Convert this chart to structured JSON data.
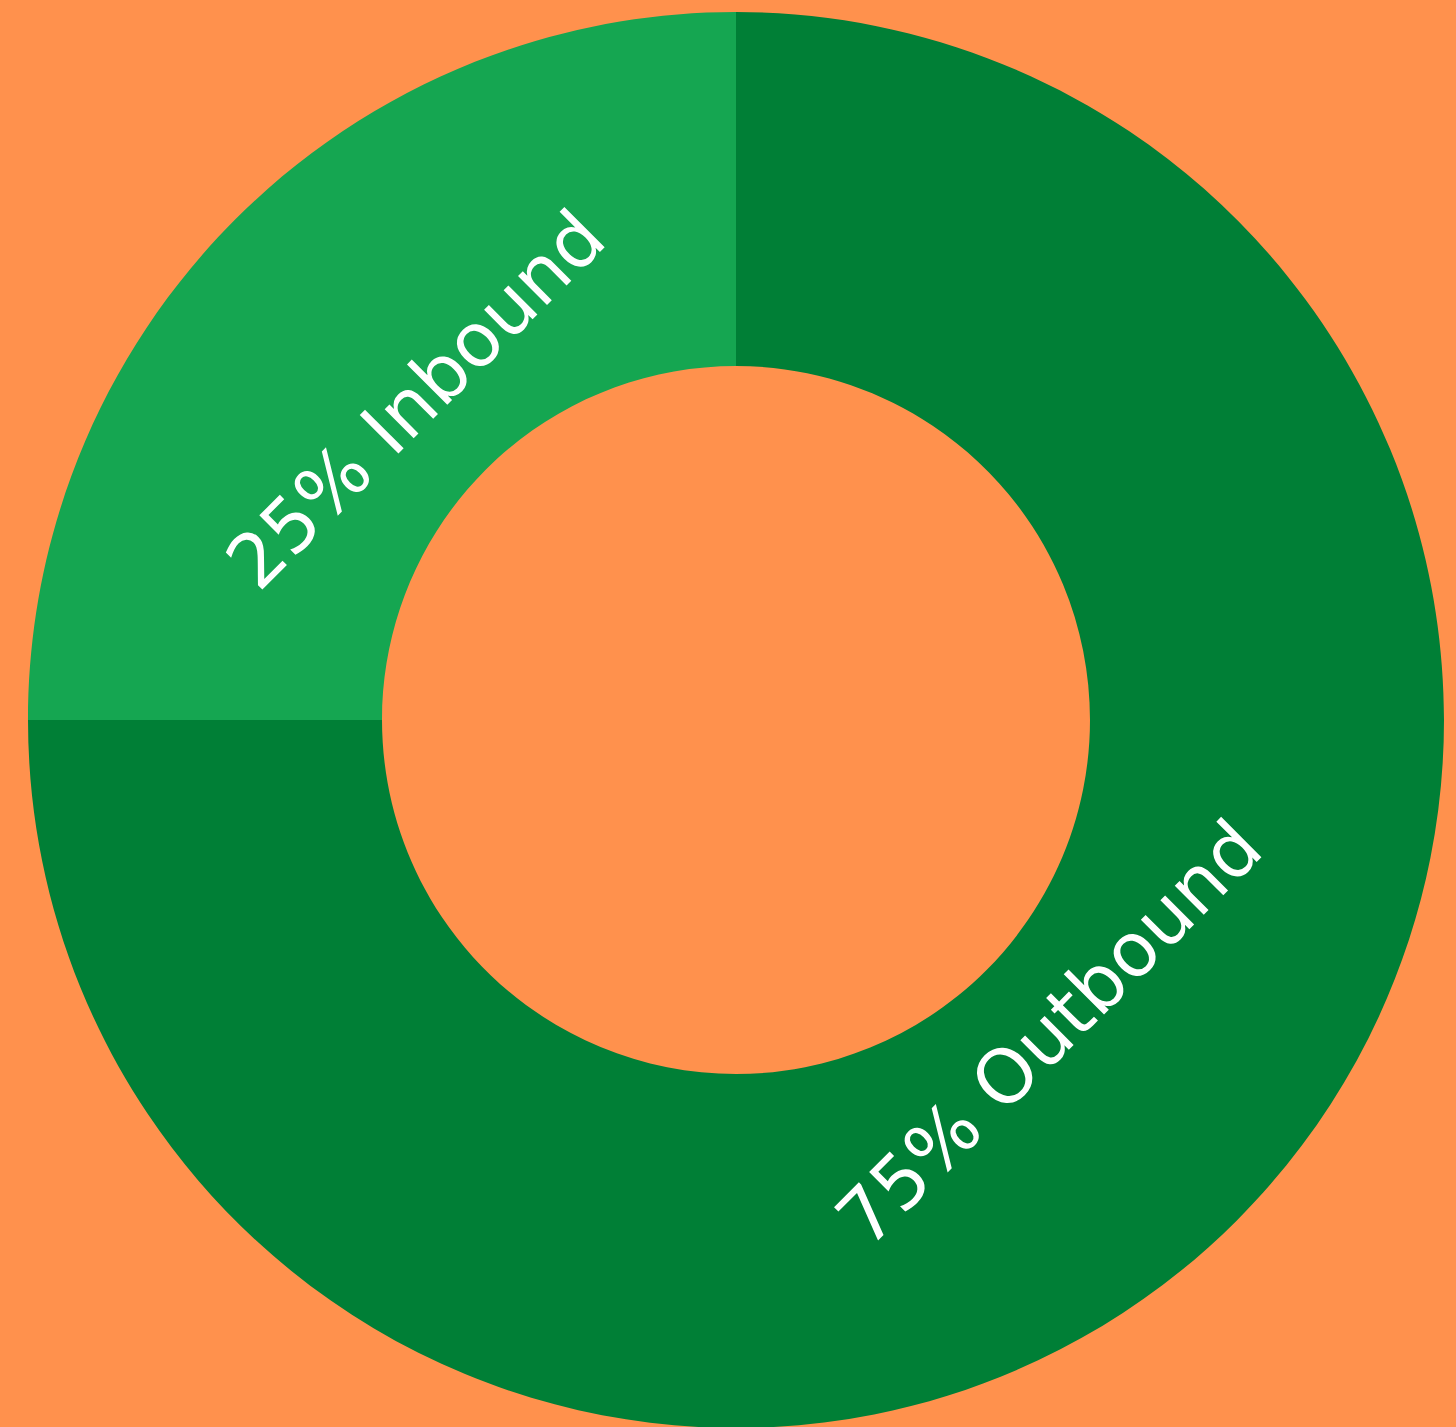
{
  "chart_data": {
    "type": "donut",
    "categories": [
      "75% Outbound",
      "25% Inbound"
    ],
    "values": [
      75,
      25
    ],
    "colors": [
      "#007f36",
      "#15a651"
    ]
  }
}
